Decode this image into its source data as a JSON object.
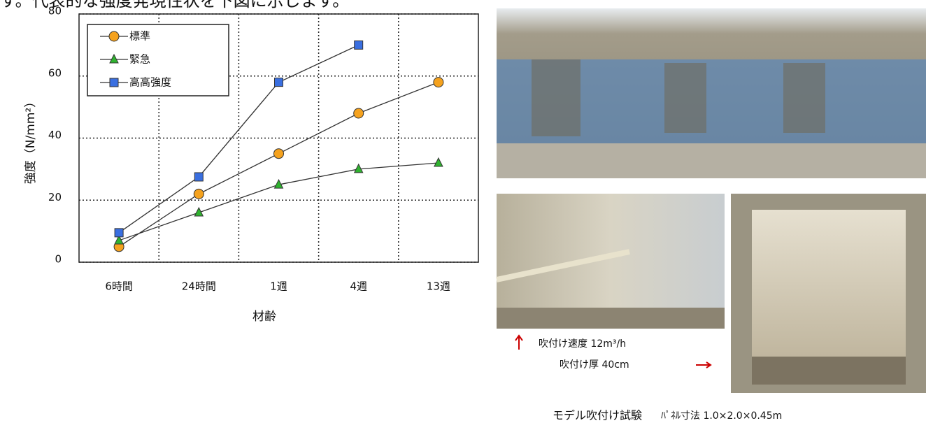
{
  "header_text": "す。代表的な強度発現性状を下図に示します。",
  "chart_data": {
    "type": "line",
    "y_label": "強度（N/mm²）",
    "x_label": "材齢",
    "categories": [
      "6時間",
      "24時間",
      "1週",
      "4週",
      "13週"
    ],
    "series": [
      {
        "name": "標準",
        "color": "#f5a21e",
        "marker": "circle",
        "values": [
          5,
          22,
          35,
          48,
          58
        ]
      },
      {
        "name": "緊急",
        "color": "#2fb32f",
        "marker": "triangle",
        "values": [
          7,
          16,
          25,
          30,
          32
        ]
      },
      {
        "name": "高高強度",
        "color": "#3a6fe0",
        "marker": "square",
        "values": [
          9.5,
          27.5,
          58,
          70,
          null
        ]
      }
    ],
    "ylim": [
      0,
      80
    ],
    "yticks": [
      0,
      20,
      40,
      60,
      80
    ],
    "grid": true,
    "legend": "top-left"
  },
  "photo_captions": {
    "speed": "吹付け速度 12m³/h",
    "thickness": "吹付け厚 40cm",
    "test": "モデル吹付け試験",
    "panel": "ﾊﾟﾈﾙ寸法 1.0×2.0×0.45m"
  }
}
